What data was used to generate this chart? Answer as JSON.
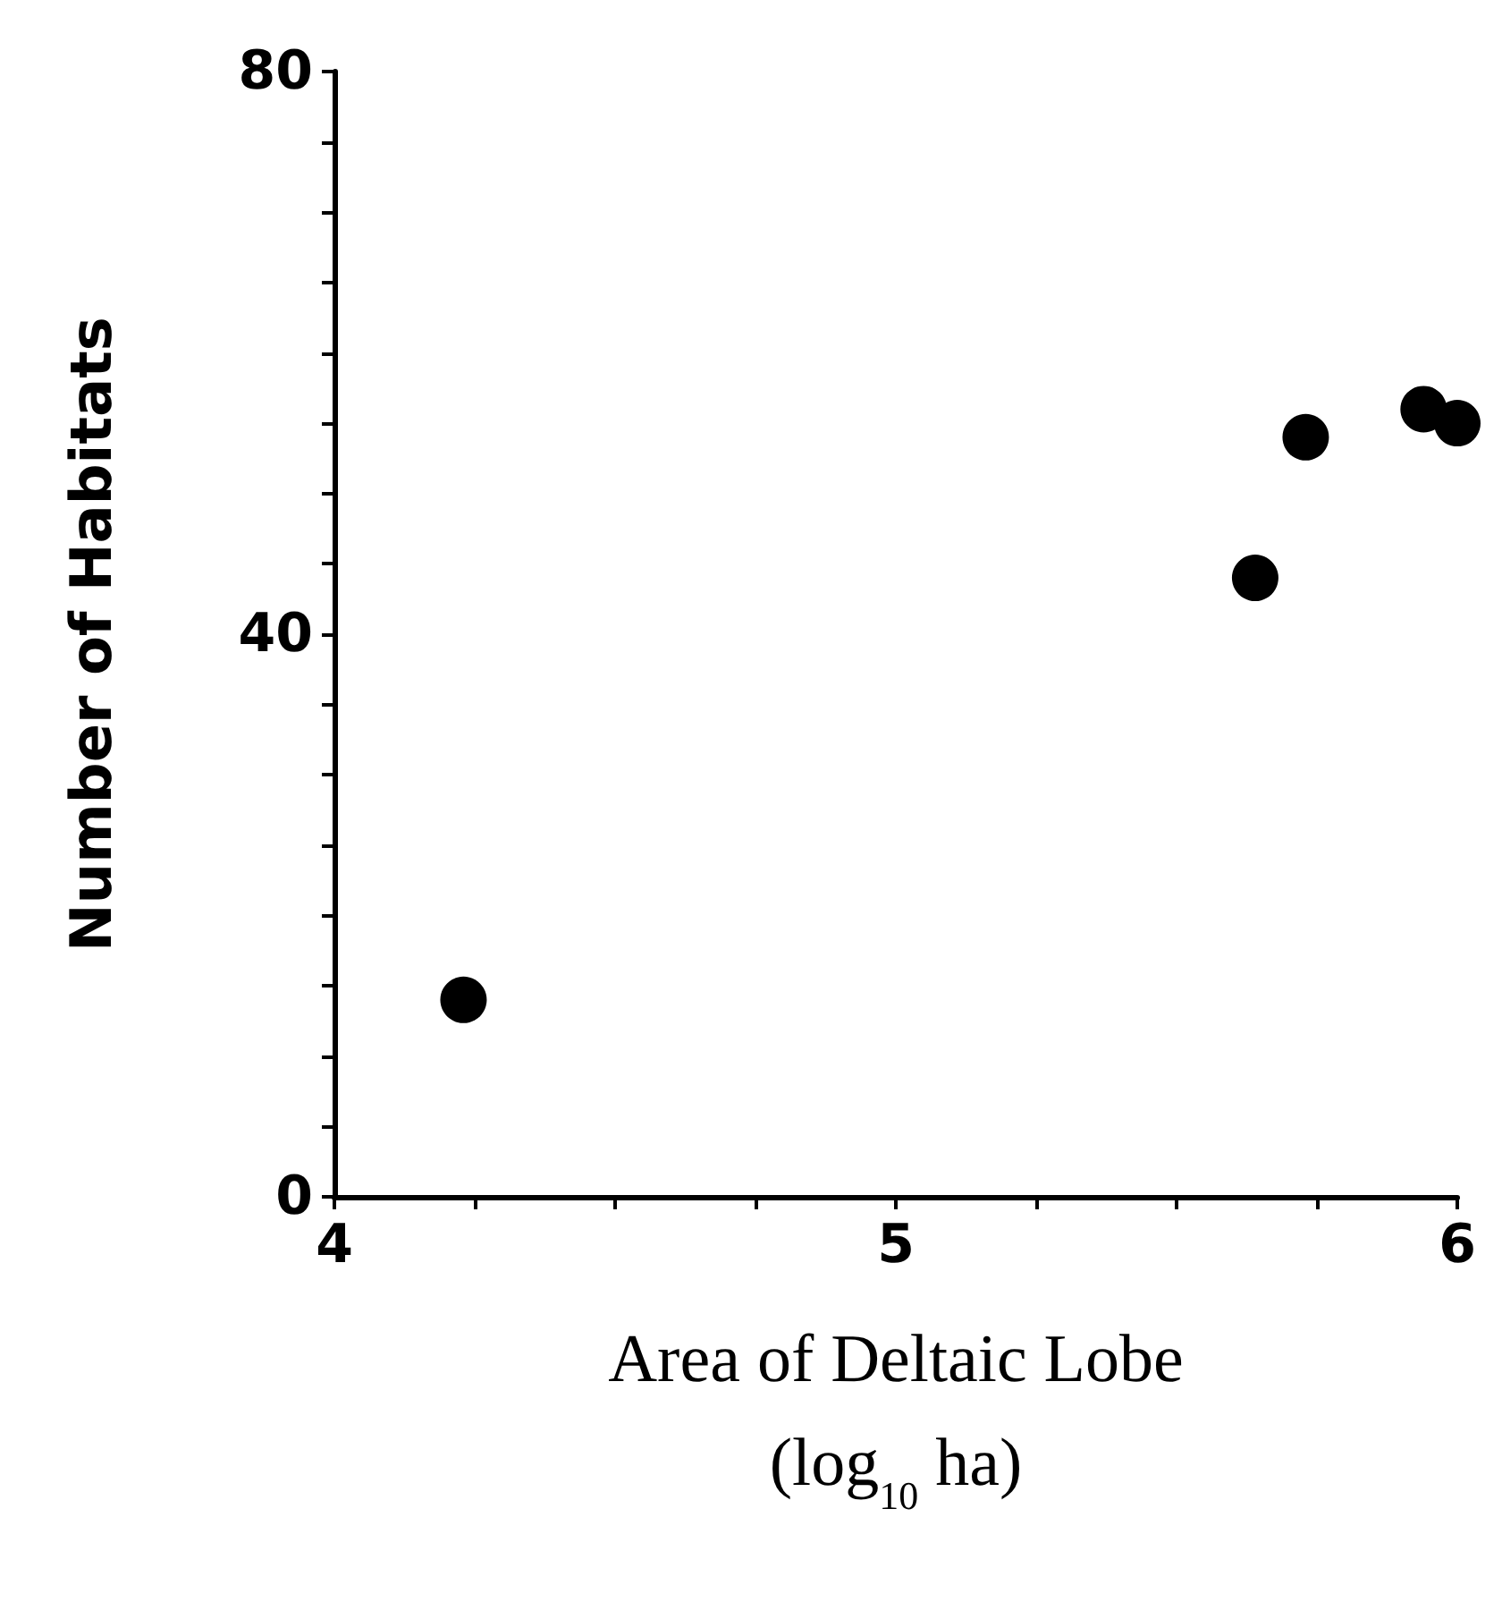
{
  "chart_data": {
    "type": "scatter",
    "xlabel": "Area of Deltaic Lobe\n(log$_{10}$ ha)",
    "ylabel": "Number of Habitats",
    "x": [
      4.23,
      5.64,
      5.73,
      5.94,
      6.0
    ],
    "series": [
      {
        "color": "#000000",
        "values": [
          14,
          44,
          54,
          56,
          55
        ]
      }
    ],
    "xlim": [
      4,
      6
    ],
    "ylim": [
      0,
      80
    ],
    "xticks": [
      4,
      {
        "value": 4.25,
        "label": null
      },
      {
        "value": 4.5,
        "label": null
      },
      {
        "value": 4.75,
        "label": null
      },
      5,
      {
        "value": 5.25,
        "label": null
      },
      {
        "value": 5.5,
        "label": null
      },
      {
        "value": 5.75,
        "label": null
      },
      6
    ],
    "yticks": [
      0,
      {
        "value": 5,
        "label": null
      },
      {
        "value": 10,
        "label": null
      },
      {
        "value": 15,
        "label": null
      },
      {
        "value": 20,
        "label": null
      },
      {
        "value": 25,
        "label": null
      },
      {
        "value": 30,
        "label": null
      },
      {
        "value": 35,
        "label": null
      },
      40,
      {
        "value": 45,
        "label": null
      },
      {
        "value": 50,
        "label": null
      },
      {
        "value": 55,
        "label": null
      },
      {
        "value": 60,
        "label": null
      },
      {
        "value": 65,
        "label": null
      },
      {
        "value": 70,
        "label": null
      },
      {
        "value": 75,
        "label": null
      },
      80
    ],
    "marker": "circle",
    "grid": false
  }
}
